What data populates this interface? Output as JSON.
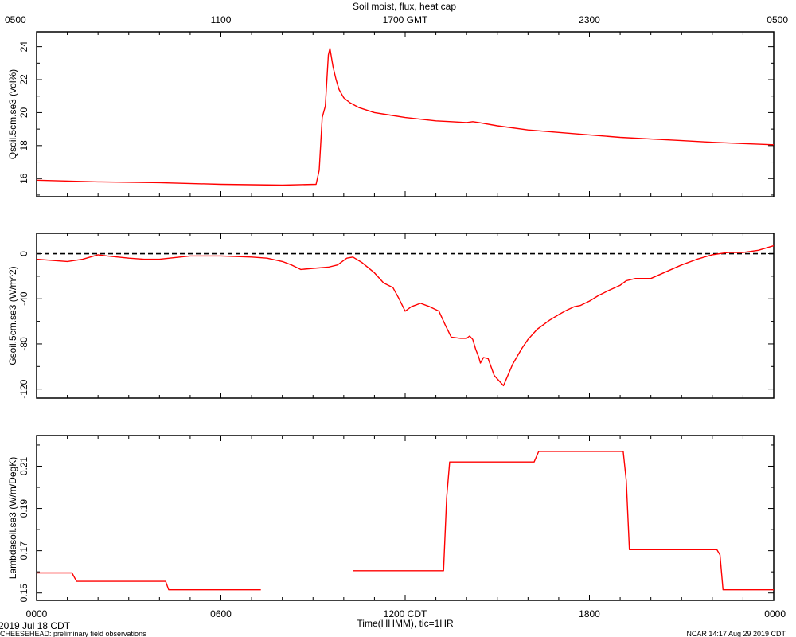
{
  "title": "Soil moist, flux, heat cap",
  "top_axis_ticks": [
    "0500",
    "1100",
    "1700 GMT",
    "2300",
    "0500"
  ],
  "bottom_axis_ticks": [
    "0000",
    "0600",
    "1200 CDT",
    "1800",
    "0000"
  ],
  "xlabel": "Time(HHMM), tic=1HR",
  "date_label": "2019 Jul 18 CDT",
  "footer_left": "CHEESEHEAD: preliminary field observations",
  "footer_right": "NCAR 14:17 Aug 29 2019 CDT",
  "colors": {
    "series": "#ff0000",
    "axes": "#000000"
  },
  "chart_data": [
    {
      "type": "line",
      "ylabel": "Qsoil.5cm.se3 (vol%)",
      "xlim": [
        0,
        24
      ],
      "ylim": [
        14.9,
        24.9
      ],
      "yticks": [
        16,
        18,
        20,
        22,
        24
      ],
      "series": [
        {
          "x": [
            0.0,
            2.0,
            4.0,
            6.0,
            8.0,
            9.1,
            9.2,
            9.3,
            9.4,
            9.5,
            9.55,
            9.65,
            9.75,
            9.85,
            10.0,
            10.2,
            10.5,
            11.0,
            11.5,
            12.0,
            12.5,
            13.0,
            13.5,
            14.0,
            14.2,
            14.4,
            15.0,
            16.0,
            17.0,
            18.0,
            19.0,
            20.0,
            21.0,
            22.0,
            23.0,
            24.0
          ],
          "y": [
            15.9,
            15.8,
            15.75,
            15.65,
            15.6,
            15.65,
            16.5,
            19.7,
            20.4,
            23.5,
            23.9,
            22.8,
            22.0,
            21.4,
            20.9,
            20.6,
            20.3,
            20.0,
            19.85,
            19.7,
            19.6,
            19.5,
            19.45,
            19.4,
            19.45,
            19.4,
            19.2,
            18.95,
            18.8,
            18.65,
            18.5,
            18.4,
            18.3,
            18.2,
            18.12,
            18.05
          ]
        }
      ]
    },
    {
      "type": "line",
      "ylabel": "Gsoil.5cm.se3 (W/m^2)",
      "xlim": [
        0,
        24
      ],
      "ylim": [
        -128,
        18
      ],
      "yticks": [
        0,
        -40,
        -80,
        -120
      ],
      "reference_line": {
        "y": 0,
        "style": "dashed"
      },
      "series": [
        {
          "x": [
            0.0,
            1.0,
            1.5,
            2.0,
            2.3,
            3.0,
            3.5,
            4.0,
            5.0,
            6.0,
            7.0,
            7.5,
            8.0,
            8.3,
            8.6,
            9.0,
            9.5,
            9.8,
            10.1,
            10.3,
            10.6,
            11.0,
            11.3,
            11.6,
            11.8,
            12.0,
            12.2,
            12.5,
            12.8,
            13.1,
            13.3,
            13.5,
            13.8,
            14.0,
            14.1,
            14.2,
            14.3,
            14.4,
            14.45,
            14.55,
            14.7,
            14.9,
            15.2,
            15.5,
            15.8,
            16.0,
            16.3,
            16.7,
            17.0,
            17.2,
            17.5,
            17.7,
            18.0,
            18.3,
            18.6,
            19.0,
            19.2,
            19.5,
            20.0,
            20.5,
            21.0,
            21.5,
            22.0,
            22.5,
            23.0,
            23.5,
            24.0
          ],
          "y": [
            -5,
            -7,
            -5,
            -1,
            -2,
            -4,
            -5,
            -5,
            -2,
            -2,
            -3,
            -4,
            -7,
            -10,
            -14,
            -13,
            -12,
            -10,
            -4,
            -3,
            -8,
            -17,
            -26,
            -30,
            -40,
            -51,
            -47,
            -44,
            -47,
            -51,
            -63,
            -74,
            -75,
            -75,
            -73,
            -76,
            -85,
            -92,
            -97,
            -92,
            -93,
            -108,
            -117,
            -98,
            -84,
            -76,
            -67,
            -59,
            -54,
            -51,
            -47,
            -46,
            -42,
            -37,
            -33,
            -28,
            -24,
            -22,
            -22,
            -16,
            -10,
            -5,
            -1,
            1,
            1,
            3,
            7
          ]
        }
      ]
    },
    {
      "type": "line",
      "ylabel": "Lambdasoil.se3 (W/m/DegK)",
      "xlim": [
        0,
        24
      ],
      "ylim": [
        0.1465,
        0.2245
      ],
      "yticks": [
        0.15,
        0.17,
        0.19,
        0.21
      ],
      "series": [
        {
          "name": "segment 1",
          "x": [
            0.0,
            1.15,
            1.3,
            4.2,
            4.3,
            7.3
          ],
          "y": [
            0.1595,
            0.1595,
            0.1555,
            0.1555,
            0.1515,
            0.1515
          ]
        },
        {
          "name": "segment 2",
          "x": [
            10.3,
            13.25,
            13.35,
            13.45,
            16.2,
            16.35,
            19.1,
            19.2,
            19.3,
            22.15,
            22.25,
            22.35,
            24.0
          ],
          "y": [
            0.1605,
            0.1605,
            0.195,
            0.212,
            0.212,
            0.217,
            0.217,
            0.203,
            0.1705,
            0.1705,
            0.168,
            0.1515,
            0.1515
          ]
        }
      ]
    }
  ]
}
